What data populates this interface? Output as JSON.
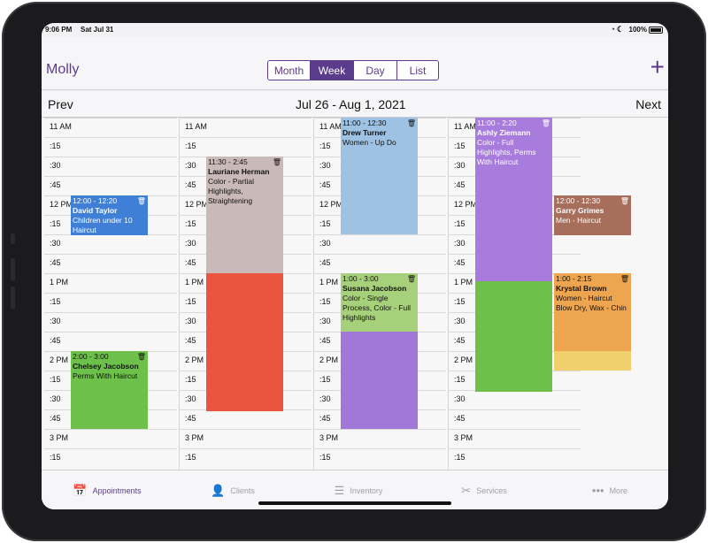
{
  "status": {
    "time": "9:06 PM",
    "date": "Sat Jul 31",
    "battery": "100%"
  },
  "header": {
    "title": "Molly",
    "segments": [
      {
        "label": "Month",
        "active": false
      },
      {
        "label": "Week",
        "active": true
      },
      {
        "label": "Day",
        "active": false
      },
      {
        "label": "List",
        "active": false
      }
    ]
  },
  "week_nav": {
    "prev": "Prev",
    "range": "Jul 26 - Aug 1, 2021",
    "next": "Next"
  },
  "time_slots": [
    "11 AM",
    ":15",
    ":30",
    ":45",
    "12 PM",
    ":15",
    ":30",
    ":45",
    "1 PM",
    ":15",
    ":30",
    ":45",
    "2 PM",
    ":15",
    ":30",
    ":45",
    "3 PM",
    ":15"
  ],
  "columns": [
    {
      "appointments": [
        {
          "time": "12:00 - 12:20",
          "name": "David Taylor",
          "service": "Children under 10 Haircut",
          "color": "#3f7fd6"
        },
        {
          "time": "2:00 - 3:00",
          "name": "Chelsey Jacobson",
          "service": "Perms With Haircut",
          "color": "#6dc04a"
        }
      ]
    },
    {
      "appointments": [
        {
          "time": "11:30 - 2:45",
          "name": "Lauriane Herman",
          "service": "Color - Partial Highlights, Straightening",
          "color": "#c9b9b8",
          "extension_color": "#e9553e"
        }
      ]
    },
    {
      "appointments": [
        {
          "time": "11:00 - 12:30",
          "name": "Drew Turner",
          "service": "Women - Up Do",
          "color": "#9ec2e3"
        },
        {
          "time": "1:00 - 3:00",
          "name": "Susana Jacobson",
          "service": "Color - Single Process, Color - Full Highlights",
          "color": "#a6d07a",
          "extension_color": "#a178d8"
        }
      ]
    },
    {
      "appointments": [
        {
          "time": "11:00 - 2:20",
          "name": "Ashly Ziemann",
          "service": "Color - Full Highlights, Perms With Haircut",
          "color": "#a87cdc",
          "extension_color": "#6dc04a"
        },
        {
          "time": "12:00 - 12:30",
          "name": "Garry Grimes",
          "service": "Men - Haircut",
          "color": "#a86e5c"
        },
        {
          "time": "1:00 - 2:15",
          "name": "Krystal Brown",
          "service": "Women - Haircut Blow Dry, Wax - Chin",
          "color": "#eda54f",
          "extension_color": "#f0cf6c"
        }
      ]
    }
  ],
  "tabs": [
    {
      "label": "Appointments",
      "icon": "calendar-icon",
      "active": true
    },
    {
      "label": "Clients",
      "icon": "person-icon",
      "active": false
    },
    {
      "label": "Inventory",
      "icon": "server-icon",
      "active": false
    },
    {
      "label": "Services",
      "icon": "scissors-icon",
      "active": false
    },
    {
      "label": "More",
      "icon": "ellipsis-icon",
      "active": false
    }
  ]
}
